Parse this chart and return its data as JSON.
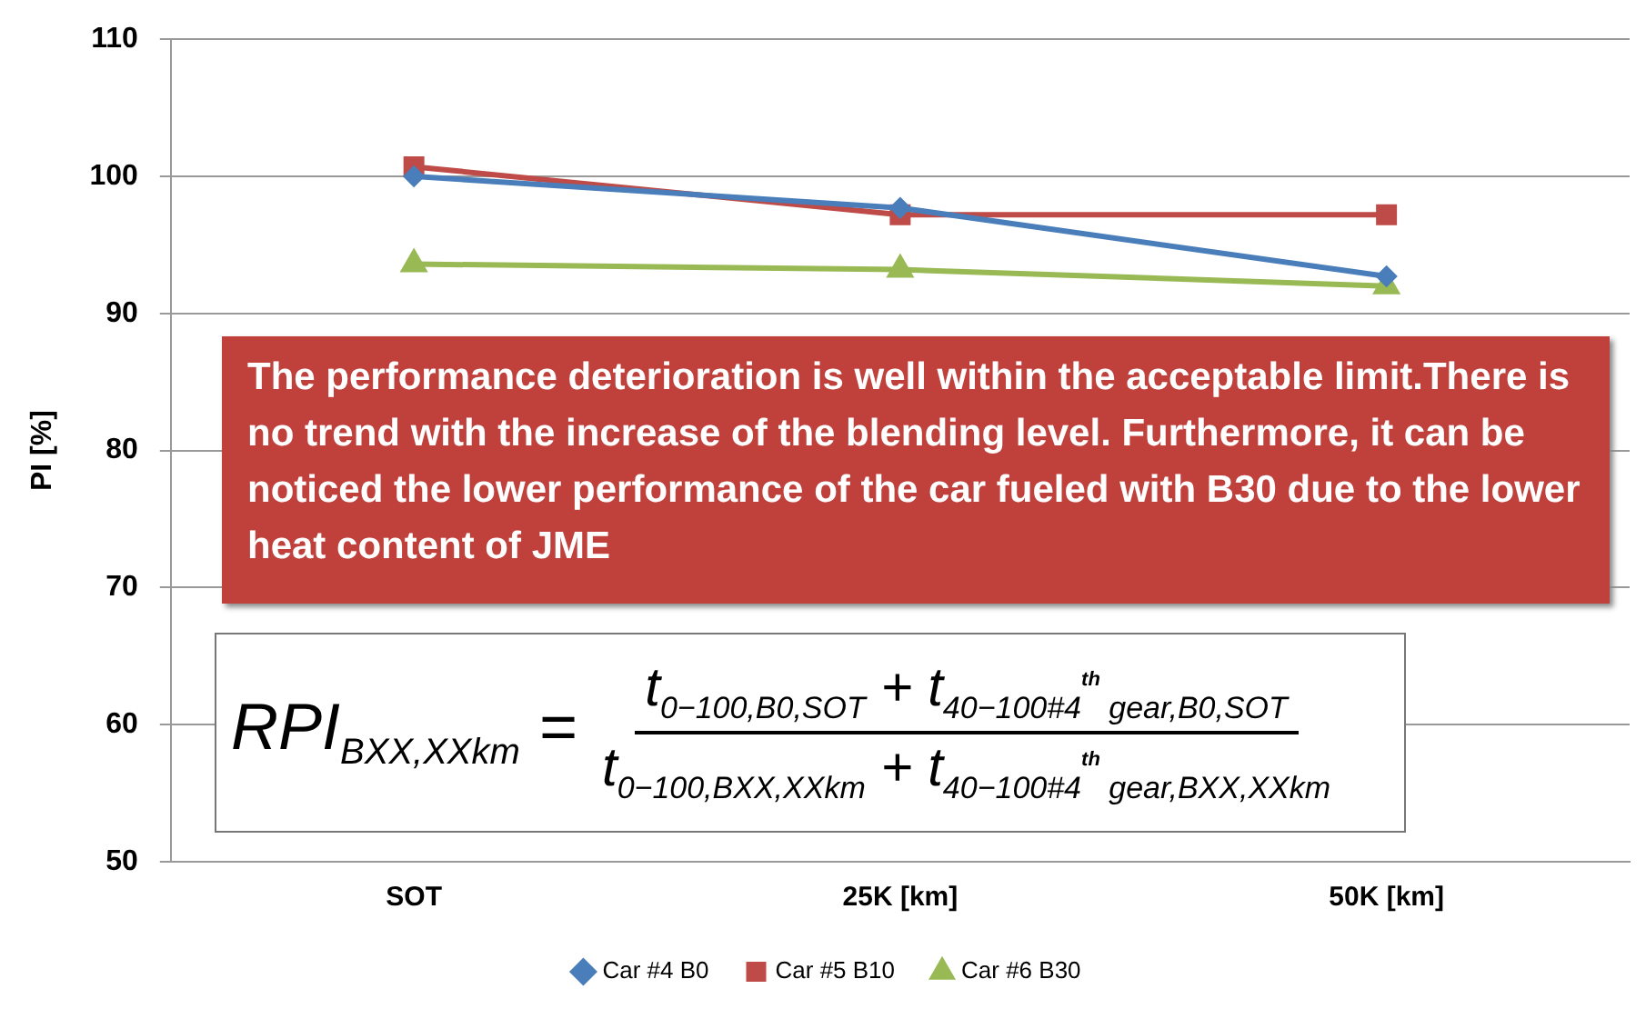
{
  "chart_data": {
    "type": "line",
    "ylabel": "PI [%]",
    "categories": [
      "SOT",
      "25K [km]",
      "50K [km]"
    ],
    "series": [
      {
        "name": "Car #4 B0",
        "color": "#4a7ebb",
        "marker": "diamond",
        "values": [
          100.0,
          97.7,
          92.7
        ]
      },
      {
        "name": "Car #5 B10",
        "color": "#be4b48",
        "marker": "square",
        "values": [
          100.7,
          97.2,
          97.2
        ]
      },
      {
        "name": "Car #6 B30",
        "color": "#98b954",
        "marker": "triangle",
        "values": [
          93.6,
          93.2,
          92.0
        ]
      }
    ],
    "ylim": [
      50,
      110
    ],
    "yticks": [
      50,
      60,
      70,
      80,
      90,
      100,
      110
    ],
    "grid": "y",
    "legend": "bottom",
    "annotations": [
      "The performance deterioration is well within the acceptable limit.There is no trend with the increase of the blending level. Furthermore, it can be noticed the lower performance of the car fueled with B30 due to the lower heat content of JME",
      "RPI$_{BXX,XXkm}$ =",
      "t$_{0−100,B0,SOT}$ + t$_{40−100#4}$$^{th}$$_{ gear,B0,SOT}$",
      "t$_{0−100,BXX,XXkm}$ + t$_{40−100#4}$$^{th}$$_{ gear,BXX,XXkm}$"
    ]
  }
}
